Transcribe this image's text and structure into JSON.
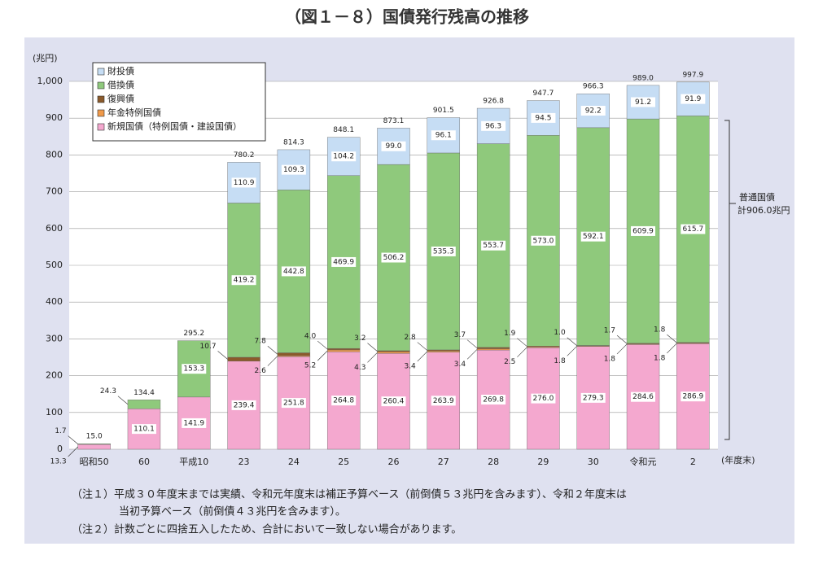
{
  "chart_data": {
    "type": "stacked_bar",
    "title": "（図１－８）国債発行残高の推移",
    "y_unit": "(兆円)",
    "x_unit": "(年度末)",
    "categories": [
      "昭和50",
      "60",
      "平成10",
      "23",
      "24",
      "25",
      "26",
      "27",
      "28",
      "29",
      "30",
      "令和元",
      "2"
    ],
    "ylim": [
      0,
      1000
    ],
    "yticks": [
      0,
      100,
      200,
      300,
      400,
      500,
      600,
      700,
      800,
      900,
      {
        "value": 1000,
        "label": "1,000"
      }
    ],
    "grid": true,
    "series": [
      {
        "name": "新規国債（特例国債・建設国債）",
        "color": "#f4a8cf",
        "values": [
          13.3,
          110.1,
          141.9,
          239.4,
          251.8,
          264.8,
          260.4,
          263.9,
          269.8,
          276.0,
          279.3,
          284.6,
          286.9
        ],
        "value_labels": [
          "13.3",
          "110.1",
          "141.9",
          "239.4",
          "251.8",
          "264.8",
          "260.4",
          "263.9",
          "269.8",
          "276.0",
          "279.3",
          "284.6",
          "286.9"
        ]
      },
      {
        "name": "年金特例国債",
        "color": "#f09a4a",
        "values": [
          null,
          null,
          null,
          null,
          2.6,
          5.2,
          4.3,
          3.4,
          3.4,
          2.5,
          1.8,
          1.8,
          1.8
        ],
        "value_labels": [
          null,
          null,
          null,
          null,
          "2.6",
          "5.2",
          "4.3",
          "3.4",
          "3.4",
          "2.5",
          "1.8",
          "1.8",
          "1.8"
        ]
      },
      {
        "name": "復興債",
        "color": "#8b5a2b",
        "values": [
          null,
          null,
          null,
          10.7,
          7.8,
          4.0,
          3.2,
          2.8,
          3.7,
          1.9,
          1.0,
          1.7,
          1.8
        ],
        "value_labels": [
          null,
          null,
          null,
          "10.7",
          "7.8",
          "4.0",
          "3.2",
          "2.8",
          "3.7",
          "1.9",
          "1.0",
          "1.7",
          "1.8"
        ]
      },
      {
        "name": "借換債",
        "color": "#8fc97c",
        "values": [
          1.7,
          24.3,
          153.3,
          419.2,
          442.8,
          469.9,
          506.2,
          535.3,
          553.7,
          573.0,
          592.1,
          609.9,
          615.7
        ],
        "value_labels": [
          "1.7",
          "24.3",
          "153.3",
          "419.2",
          "442.8",
          "469.9",
          "506.2",
          "535.3",
          "553.7",
          "573.0",
          "592.1",
          "609.9",
          "615.7"
        ]
      },
      {
        "name": "財投債",
        "color": "#c6ddf4",
        "values": [
          null,
          null,
          null,
          110.9,
          109.3,
          104.2,
          99.0,
          96.1,
          96.3,
          94.5,
          92.2,
          91.2,
          91.9
        ],
        "value_labels": [
          null,
          null,
          null,
          "110.9",
          "109.3",
          "104.2",
          "99.0",
          "96.1",
          "96.3",
          "94.5",
          "92.2",
          "91.2",
          "91.9"
        ]
      }
    ],
    "totals": {
      "values": [
        15.0,
        134.4,
        295.2,
        780.2,
        814.3,
        848.1,
        873.1,
        901.5,
        926.8,
        947.7,
        966.3,
        989.0,
        997.9
      ],
      "value_labels": [
        "15.0",
        "134.4",
        "295.2",
        "780.2",
        "814.3",
        "848.1",
        "873.1",
        "901.5",
        "926.8",
        "947.7",
        "966.3",
        "989.0",
        "997.9"
      ]
    },
    "annotation": [
      "普通国債",
      "計906.0兆円"
    ],
    "notes": [
      "（注１）平成３０年度末までは実績、令和元年度末は補正予算ベース（前倒債５３兆円を含みます）、令和２年度末は",
      "当初予算ベース（前倒債４３兆円を含みます）。",
      "（注２）計数ごとに四捨五入したため、合計において一致しない場合があります。"
    ]
  }
}
